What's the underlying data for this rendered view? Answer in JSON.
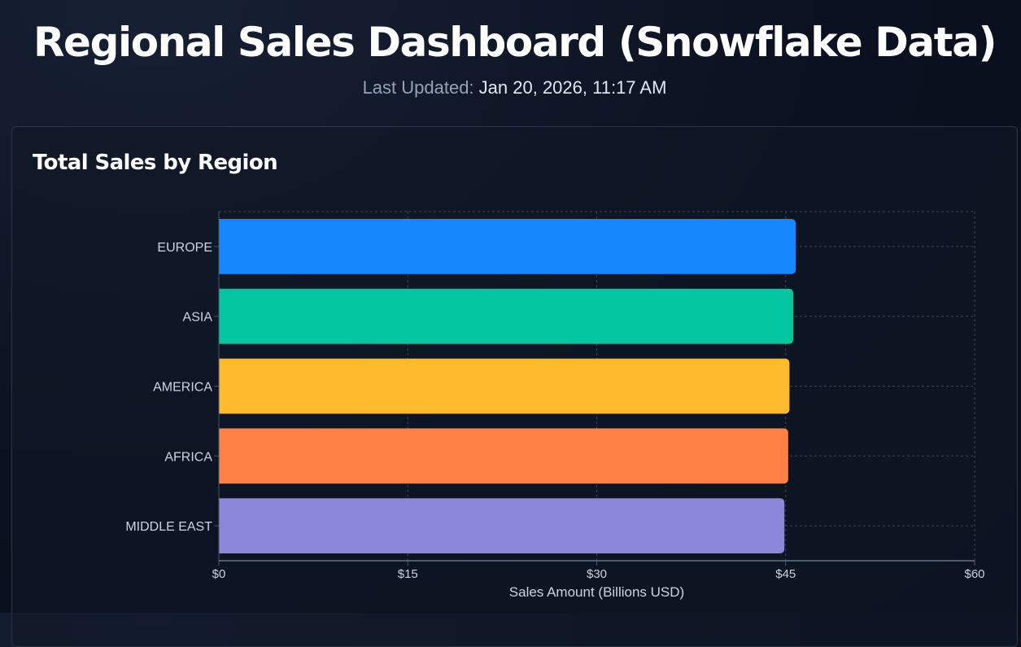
{
  "header": {
    "title": "Regional Sales Dashboard (Snowflake Data)",
    "last_updated_label": "Last Updated:",
    "last_updated_value": "Jan 20, 2026, 11:17 AM"
  },
  "colors": {
    "EUROPE": "#1787fe",
    "ASIA": "#03c5a0",
    "AMERICA": "#ffba2d",
    "AFRICA": "#fe8044",
    "MIDDLE EAST": "#8b88da"
  },
  "chart_data": {
    "type": "bar",
    "orientation": "horizontal",
    "title": "Total Sales by Region",
    "categories": [
      "EUROPE",
      "ASIA",
      "AMERICA",
      "AFRICA",
      "MIDDLE EAST"
    ],
    "values": [
      45.8,
      45.6,
      45.3,
      45.2,
      44.9
    ],
    "xlabel": "Sales Amount (Billions USD)",
    "ylabel": "",
    "xlim": [
      0,
      60
    ],
    "xticks": [
      0,
      15,
      30,
      45,
      60
    ],
    "xtick_labels": [
      "$0",
      "$15",
      "$30",
      "$45",
      "$60"
    ],
    "grid": true,
    "legend": "none"
  }
}
